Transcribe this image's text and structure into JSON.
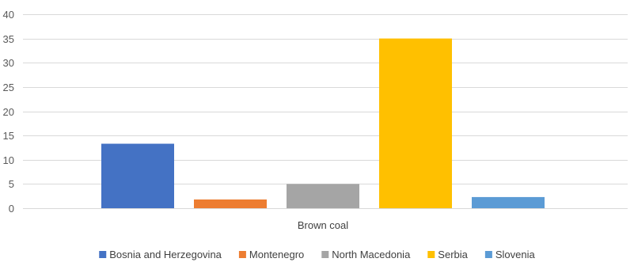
{
  "chart_data": {
    "type": "bar",
    "title": "",
    "xlabel": "",
    "ylabel": "",
    "categories": [
      "Brown coal"
    ],
    "series": [
      {
        "name": "Bosnia and Herzegovina",
        "values": [
          13.3
        ],
        "color": "#4472C4"
      },
      {
        "name": "Montenegro",
        "values": [
          1.8
        ],
        "color": "#ED7D31"
      },
      {
        "name": "North Macedonia",
        "values": [
          5.0
        ],
        "color": "#A5A5A5"
      },
      {
        "name": "Serbia",
        "values": [
          35.0
        ],
        "color": "#FFC000"
      },
      {
        "name": "Slovenia",
        "values": [
          2.3
        ],
        "color": "#5B9BD5"
      }
    ],
    "ylim": [
      0,
      40
    ],
    "yticks": [
      0,
      5,
      10,
      15,
      20,
      25,
      30,
      35,
      40
    ],
    "grid": true,
    "legend_position": "bottom"
  }
}
